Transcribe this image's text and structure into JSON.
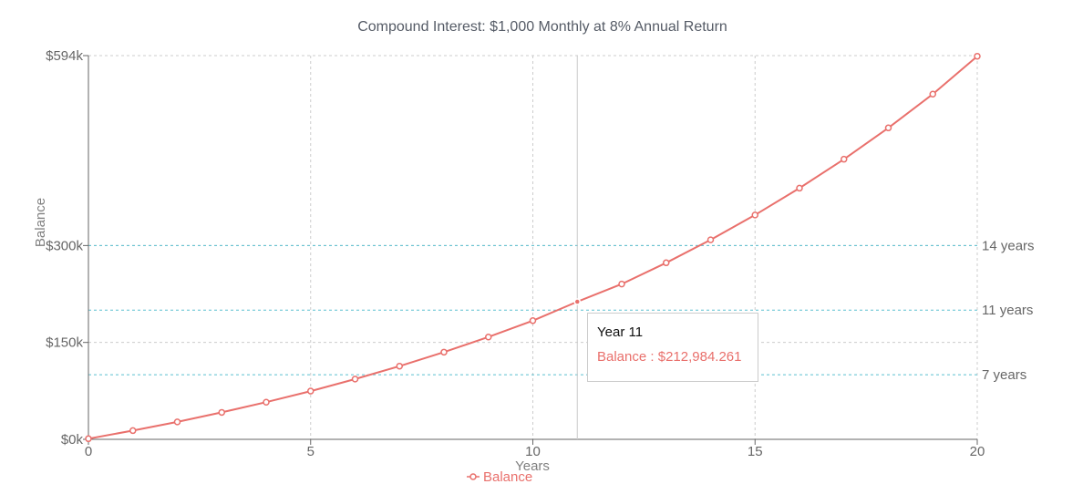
{
  "chart_data": {
    "type": "line",
    "title": "Compound Interest: $1,000 Monthly at 8% Annual Return",
    "xlabel": "Years",
    "ylabel": "Balance",
    "xlim": [
      0,
      20
    ],
    "ylim": [
      0,
      594000
    ],
    "x_ticks": [
      "0",
      "5",
      "10",
      "15",
      "20"
    ],
    "x_tick_values": [
      0,
      5,
      10,
      15,
      20
    ],
    "y_ticks": [
      "$0k",
      "$150k",
      "$300k",
      "$594k"
    ],
    "y_tick_values": [
      0,
      150000,
      300000,
      594000
    ],
    "grid": true,
    "legend_position": "bottom",
    "series": [
      {
        "name": "Balance",
        "color": "#e9706c",
        "x": [
          0,
          1,
          2,
          3,
          4,
          5,
          6,
          7,
          8,
          9,
          10,
          11,
          12,
          13,
          14,
          15,
          16,
          17,
          18,
          19,
          20
        ],
        "values": [
          1000,
          13500,
          27000,
          41700,
          57500,
          74700,
          93300,
          113300,
          135000,
          158400,
          183700,
          212984,
          240400,
          273300,
          308800,
          347300,
          388800,
          433600,
          482100,
          534400,
          593000
        ]
      }
    ],
    "reference_lines": [
      {
        "value": 300000,
        "label": "14 years",
        "color": "#5bc0d0"
      },
      {
        "value": 200000,
        "label": "11 years",
        "color": "#5bc0d0"
      },
      {
        "value": 100000,
        "label": "7 years",
        "color": "#5bc0d0"
      }
    ],
    "cursor_x": 11,
    "tooltip": {
      "title": "Year 11",
      "series_name": "Balance",
      "separator": " : ",
      "value": "$212,984.261"
    }
  }
}
